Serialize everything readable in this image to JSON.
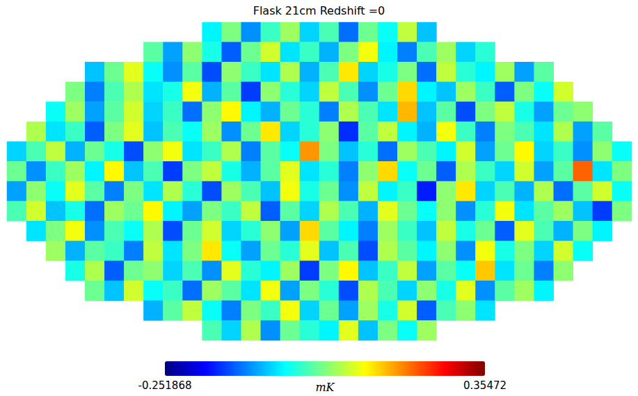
{
  "chart_data": {
    "type": "heatmap",
    "title": "Flask 21cm Redshift =0",
    "tick_labels": false,
    "colorbar": {
      "range": [
        -0.251868,
        0.35472
      ],
      "ticks": [
        -0.251868,
        0.35472
      ],
      "label": "mK"
    },
    "cells": [
      [
        -0.03,
        0.05,
        -0.09,
        0.01,
        0.07,
        -0.05,
        0.02,
        -0.11,
        0.04,
        -0.02,
        0.09,
        -0.06
      ],
      [
        0.03,
        -0.08,
        0.06,
        -0.01,
        -0.12,
        0.04,
        0.1,
        -0.04,
        0.01,
        -0.07,
        0.05,
        0.12,
        -0.03,
        -0.1,
        0.02,
        0.07,
        -0.05,
        0.0
      ],
      [
        -0.06,
        0.04,
        0.11,
        -0.02,
        -0.09,
        0.03,
        -0.13,
        0.06,
        0.01,
        -0.04,
        0.08,
        -0.07,
        0.02,
        0.14,
        -0.05,
        -0.01,
        0.05,
        -0.11,
        0.09,
        0.0,
        -0.03,
        0.07,
        -0.08,
        0.03
      ],
      [
        0.05,
        -0.1,
        0.02,
        0.08,
        -0.04,
        -0.01,
        0.12,
        -0.07,
        0.03,
        -0.14,
        0.06,
        0.0,
        -0.05,
        0.09,
        0.02,
        -0.09,
        0.04,
        0.15,
        -0.03,
        -0.06,
        0.07,
        0.01,
        -0.12,
        0.05,
        -0.02,
        0.1
      ],
      [
        -0.02,
        0.07,
        -0.08,
        0.03,
        0.1,
        -0.05,
        0.01,
        -0.11,
        0.06,
        0.13,
        -0.03,
        -0.07,
        0.04,
        0.0,
        -0.1,
        0.08,
        0.02,
        -0.04,
        0.17,
        -0.06,
        0.03,
        -0.13,
        0.05,
        0.09,
        -0.01,
        -0.08,
        0.04,
        0.06
      ],
      [
        0.08,
        -0.04,
        0.01,
        -0.12,
        0.05,
        0.11,
        -0.06,
        0.02,
        -0.02,
        0.07,
        -0.09,
        0.04,
        0.14,
        -0.05,
        0.0,
        0.06,
        -0.15,
        0.03,
        0.09,
        -0.03,
        -0.07,
        0.12,
        0.01,
        -0.1,
        0.05,
        0.02,
        -0.04,
        0.08,
        -0.08,
        0.03
      ],
      [
        -0.05,
        0.02,
        0.09,
        -0.07,
        0.04,
        -0.01,
        -0.13,
        0.06,
        0.12,
        -0.04,
        0.01,
        0.08,
        -0.1,
        0.03,
        -0.02,
        0.19,
        0.05,
        -0.06,
        0.0,
        -0.11,
        0.07,
        0.02,
        -0.03,
        0.1,
        -0.08,
        0.04,
        0.13,
        -0.05,
        0.01,
        -0.09,
        0.06,
        -0.02
      ],
      [
        0.04,
        -0.09,
        0.01,
        0.07,
        -0.03,
        0.13,
        -0.06,
        0.02,
        -0.14,
        0.05,
        0.09,
        -0.01,
        -0.07,
        0.03,
        0.11,
        -0.04,
        0.0,
        -0.1,
        0.06,
        0.15,
        -0.02,
        0.04,
        -0.12,
        0.08,
        0.01,
        -0.05,
        0.1,
        -0.08,
        0.03,
        0.22,
        -0.04,
        0.05
      ],
      [
        -0.08,
        0.06,
        -0.02,
        0.11,
        0.03,
        -0.1,
        0.05,
        -0.04,
        0.08,
        0.0,
        -0.13,
        0.07,
        0.02,
        -0.06,
        0.12,
        -0.01,
        0.04,
        -0.09,
        0.09,
        -0.03,
        0.01,
        -0.16,
        0.06,
        0.14,
        -0.05,
        0.02,
        -0.07,
        0.08,
        -0.11,
        0.03,
        0.1,
        -0.02
      ],
      [
        0.02,
        0.1,
        -0.06,
        -0.01,
        -0.11,
        0.07,
        0.04,
        0.13,
        -0.03,
        -0.08,
        0.05,
        0.01,
        0.09,
        -0.12,
        0.03,
        -0.05,
        0.08,
        0.02,
        -0.07,
        0.11,
        0.04,
        -0.02,
        0.06,
        -0.09,
        0.0,
        0.12,
        -0.04,
        0.03,
        0.07,
        -0.06,
        -0.14,
        0.05
      ],
      [
        -0.04,
        0.05,
        0.12,
        -0.09,
        0.02,
        -0.02,
        0.08,
        -0.13,
        0.04,
        0.1,
        -0.05,
        0.0,
        0.06,
        -0.08,
        0.15,
        0.03,
        -0.03,
        -0.1,
        0.07,
        0.01,
        -0.06,
        0.09,
        -0.01,
        0.04,
        -0.12,
        0.11,
        0.02,
        -0.07,
        0.05,
        -0.03
      ],
      [
        0.07,
        -0.07,
        0.03,
        0.01,
        -0.1,
        0.09,
        -0.04,
        0.05,
        0.14,
        -0.02,
        -0.08,
        0.04,
        0.0,
        0.11,
        -0.06,
        0.02,
        -0.13,
        0.08,
        0.03,
        -0.03,
        0.06,
        -0.09,
        0.12,
        -0.01,
        0.05,
        -0.05,
        0.1,
        -0.02
      ],
      [
        -0.01,
        0.08,
        -0.12,
        0.04,
        0.06,
        -0.05,
        0.02,
        -0.09,
        0.11,
        0.0,
        -0.03,
        0.07,
        -0.14,
        0.05,
        0.13,
        -0.06,
        0.01,
        0.09,
        -0.08,
        0.03,
        -0.02,
        0.16,
        -0.04,
        0.04,
        -0.1,
        0.06
      ],
      [
        0.04,
        -0.06,
        0.1,
        -0.02,
        0.01,
        -0.11,
        0.07,
        0.03,
        -0.04,
        0.12,
        -0.08,
        0.05,
        0.0,
        -0.13,
        0.08,
        0.02,
        -0.05,
        0.06,
        -0.01,
        0.11,
        -0.09,
        0.03,
        0.07,
        -0.03
      ],
      [
        -0.07,
        0.03,
        0.09,
        -0.02,
        -0.1,
        0.05,
        0.01,
        0.12,
        -0.05,
        0.04,
        -0.08,
        0.07,
        -0.01,
        0.1,
        -0.12,
        0.02,
        0.06,
        -0.04
      ],
      [
        0.02,
        -0.05,
        0.08,
        -0.09,
        0.04,
        0.0,
        -0.03,
        0.11,
        -0.06,
        0.05,
        -0.02,
        0.07
      ]
    ]
  }
}
